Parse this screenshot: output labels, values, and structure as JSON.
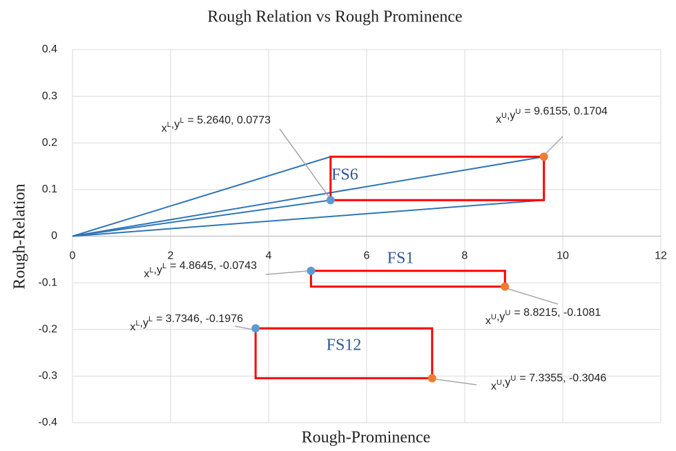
{
  "chart_data": {
    "type": "scatter",
    "title": "Rough Relation vs Rough Prominence",
    "x_label": "Rough-Prominence",
    "y_label": "Rough-Relation",
    "xlim": [
      0,
      12
    ],
    "xticks": [
      0,
      2,
      4,
      6,
      8,
      10,
      12
    ],
    "ylim": [
      -0.4,
      0.4
    ],
    "yticks": [
      -0.4,
      -0.3,
      -0.2,
      -0.1,
      0,
      0.1,
      0.2,
      0.3,
      0.4
    ],
    "grid": true,
    "lower_color": "#5b9bd5",
    "upper_color": "#ed7d31",
    "box_color": "#ff0000",
    "line_color": "#2e75b6",
    "group_label_color": "#2f5597",
    "groups": [
      {
        "name": "FS6",
        "lower": {
          "name": "xL,yL",
          "x": 5.264,
          "y": 0.0773,
          "label": "= 5.2640, 0.0773"
        },
        "upper": {
          "name": "xU,yU",
          "x": 9.6155,
          "y": 0.1704,
          "label": "= 9.6155, 0.1704"
        }
      },
      {
        "name": "FS1",
        "lower": {
          "name": "xL,yL",
          "x": 4.8645,
          "y": -0.0743,
          "label": "= 4.8645, -0.0743"
        },
        "upper": {
          "name": "xU,yU",
          "x": 8.8215,
          "y": -0.1081,
          "label": "= 8.8215, -0.1081"
        }
      },
      {
        "name": "FS12",
        "lower": {
          "name": "xL,yL",
          "x": 3.7346,
          "y": -0.1976,
          "label": "= 3.7346, -0.1976"
        },
        "upper": {
          "name": "xU,yU",
          "x": 7.3355,
          "y": -0.3046,
          "label": "= 7.3355, -0.3046"
        }
      }
    ]
  }
}
